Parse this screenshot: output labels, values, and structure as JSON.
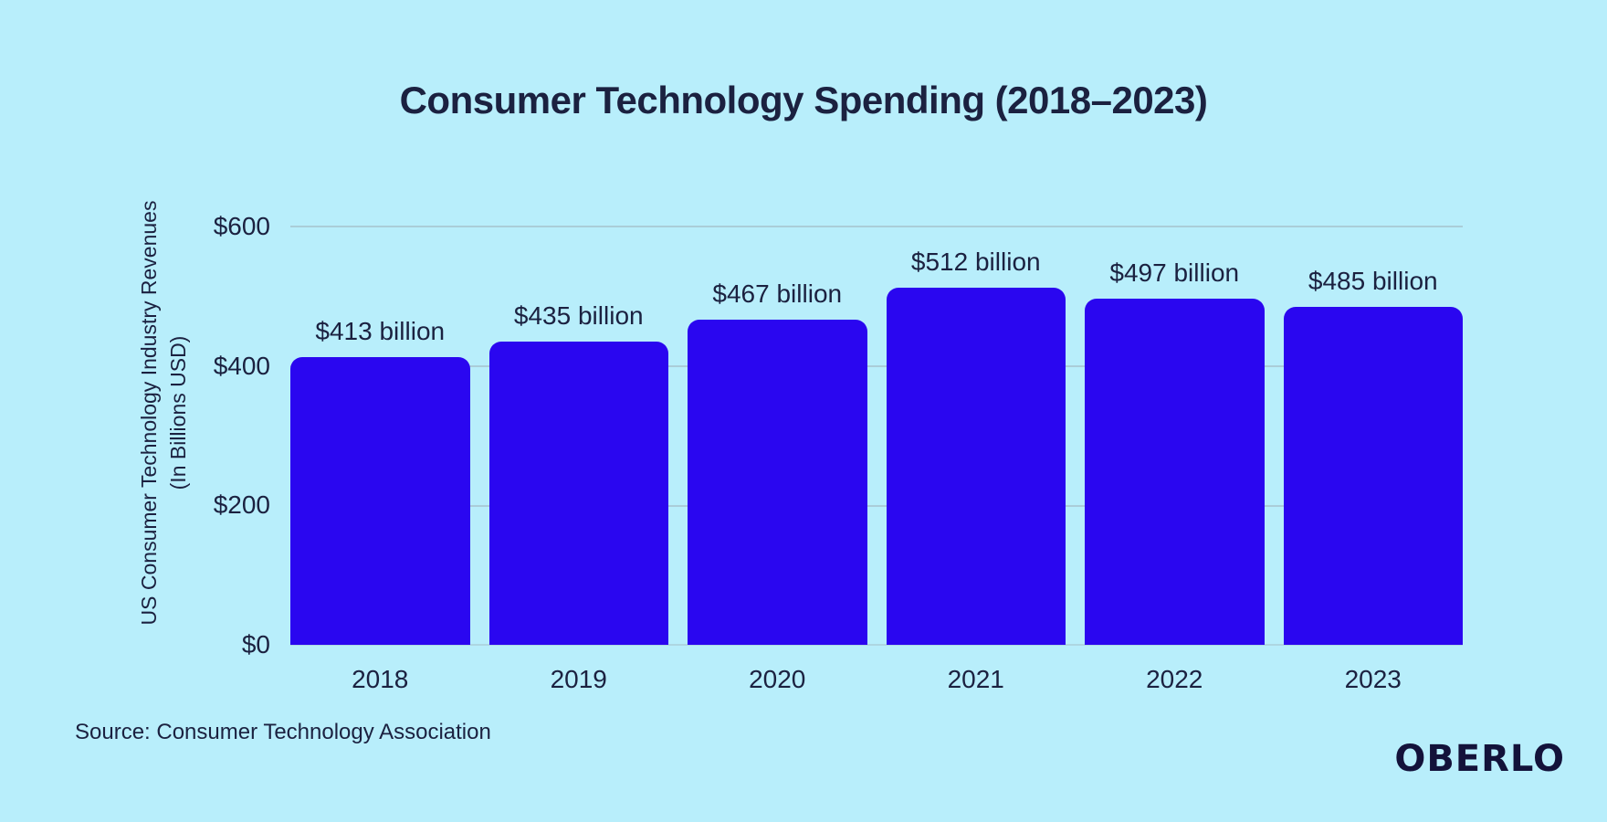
{
  "header": {
    "title": "Consumer Technology Spending (2018–2023)"
  },
  "chart": {
    "y_axis_title_line1": "US Consumer Technology Industry Revenues",
    "y_axis_title_line2": "(In Billions USD)",
    "y_ticks": [
      "$600",
      "$400",
      "$200",
      "$0"
    ]
  },
  "chart_data": {
    "type": "bar",
    "title": "Consumer Technology Spending (2018–2023)",
    "categories": [
      "2018",
      "2019",
      "2020",
      "2021",
      "2022",
      "2023"
    ],
    "values": [
      413,
      435,
      467,
      512,
      497,
      485
    ],
    "value_labels": [
      "$413 billion",
      "$435 billion",
      "$467 billion",
      "$512 billion",
      "$497 billion",
      "$485 billion"
    ],
    "xlabel": "",
    "ylabel": "US Consumer Technology Industry Revenues (In Billions USD)",
    "ylim": [
      0,
      600
    ],
    "yticks": [
      0,
      200,
      400,
      600
    ],
    "grid": true,
    "legend": false,
    "unit": "billions USD"
  },
  "footer": {
    "source": "Source: Consumer Technology Association",
    "brand": "OBERLO"
  },
  "colors": {
    "background": "#b8eefb",
    "bar": "#2a06f0",
    "text": "#1b2140",
    "gridline": "#9fb2bc",
    "logo": "#13123a"
  }
}
